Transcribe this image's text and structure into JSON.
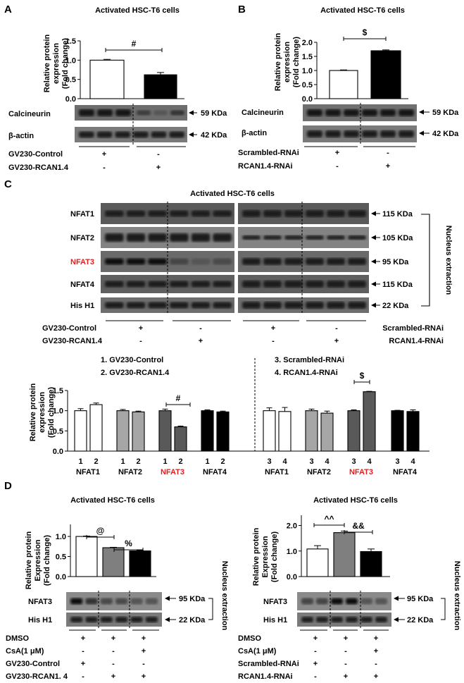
{
  "panel_a": {
    "letter": "A",
    "title": "Activated HSC-T6 cells",
    "ylabel": [
      "Relative protein",
      "expression",
      "(Fold change)"
    ],
    "yticks": [
      "0.0",
      "0.5",
      "1.0",
      "1.5"
    ],
    "sig": "#",
    "bands": [
      "Calcineurin",
      "β-actin"
    ],
    "kda": [
      "59 KDa",
      "42 KDa"
    ],
    "rows": [
      "GV230-Control",
      "GV230-RCAN1.4"
    ],
    "signs": [
      [
        "+",
        "-"
      ],
      [
        "-",
        "+"
      ]
    ]
  },
  "panel_b": {
    "letter": "B",
    "title": "Activated HSC-T6 cells",
    "ylabel": [
      "Relative protein",
      "expression",
      "(Fold change)"
    ],
    "yticks": [
      "0.0",
      "0.5",
      "1.0",
      "1.5",
      "2.0"
    ],
    "sig": "$",
    "bands": [
      "Calcineurin",
      "β-actin"
    ],
    "kda": [
      "59 KDa",
      "42 KDa"
    ],
    "rows": [
      "Scrambled-RNAi",
      "RCAN1.4-RNAi"
    ],
    "signs": [
      [
        "+",
        "-"
      ],
      [
        "-",
        "+"
      ]
    ]
  },
  "panel_c": {
    "letter": "C",
    "title": "Activated HSC-T6 cells",
    "bands": [
      "NFAT1",
      "NFAT2",
      "NFAT3",
      "NFAT4",
      "His H1"
    ],
    "kda": [
      "115 KDa",
      "105 KDa",
      "95 KDa",
      "115 KDa",
      "22 KDa"
    ],
    "side": "Nucleus extraction",
    "rows_left": [
      "GV230-Control",
      "GV230-RCAN1.4"
    ],
    "rows_right": [
      "Scrambled-RNAi",
      "RCAN1.4-RNAi"
    ],
    "signs": [
      [
        "+",
        "-"
      ],
      [
        "-",
        "+"
      ]
    ],
    "legend": [
      "1. GV230-Control",
      "2. GV230-RCAN1.4",
      "3. Scrambled-RNAi",
      "4. RCAN1.4-RNAi"
    ],
    "ylabel": [
      "Relative protein",
      "expression",
      "(Fold change)"
    ],
    "yticks": [
      "0.0",
      "0.5",
      "1.0",
      "1.5"
    ],
    "sig": [
      "#",
      "$"
    ],
    "groups": [
      "NFAT1",
      "NFAT2",
      "NFAT3",
      "NFAT4",
      "NFAT1",
      "NFAT2",
      "NFAT3",
      "NFAT4"
    ],
    "bar_ids": [
      [
        "1",
        "2"
      ],
      [
        "1",
        "2"
      ],
      [
        "1",
        "2"
      ],
      [
        "1",
        "2"
      ],
      [
        "3",
        "4"
      ],
      [
        "3",
        "4"
      ],
      [
        "3",
        "4"
      ],
      [
        "3",
        "4"
      ]
    ]
  },
  "panel_d": {
    "letter": "D",
    "title": "Activated HSC-T6 cells",
    "ylabel": [
      "Relative protein",
      "Expression",
      "(Fold change)"
    ],
    "yticks": [
      "0.0",
      "0.5",
      "1.0"
    ],
    "yticks_right": [
      "0.0",
      "1.0",
      "2.0"
    ],
    "sig_left": [
      "@",
      "%"
    ],
    "sig_right": [
      "^^",
      "&&"
    ],
    "bands": [
      "NFAT3",
      "His H1"
    ],
    "kda": [
      "95 KDa",
      "22 KDa"
    ],
    "side": "Nucleus extraction",
    "rows_left": [
      "DMSO",
      "CsA(1 μM)",
      "GV230-Control",
      "GV230-RCAN1. 4"
    ],
    "rows_right": [
      "DMSO",
      "CsA(1 μM)",
      "Scrambled-RNAi",
      "RCAN1.4-RNAi"
    ],
    "signs": [
      [
        "+",
        "+",
        "+"
      ],
      [
        "-",
        "-",
        "+"
      ],
      [
        "+",
        "-",
        "-"
      ],
      [
        "-",
        "+",
        "+"
      ]
    ]
  },
  "chart_data": [
    {
      "type": "bar",
      "panel": "A",
      "categories": [
        "GV230-Control",
        "GV230-RCAN1.4"
      ],
      "values": [
        1.0,
        0.62
      ],
      "errors": [
        0.02,
        0.06
      ],
      "ylim": [
        0,
        1.5
      ],
      "colors": [
        "#ffffff",
        "#000000"
      ]
    },
    {
      "type": "bar",
      "panel": "B",
      "categories": [
        "Scrambled-RNAi",
        "RCAN1.4-RNAi"
      ],
      "values": [
        1.0,
        1.7
      ],
      "errors": [
        0.02,
        0.03
      ],
      "ylim": [
        0,
        2.0
      ],
      "colors": [
        "#ffffff",
        "#000000"
      ]
    },
    {
      "type": "bar",
      "panel": "C",
      "ylim": [
        0,
        1.5
      ],
      "categories": [
        "NFAT1",
        "NFAT2",
        "NFAT3",
        "NFAT4",
        "NFAT1",
        "NFAT2",
        "NFAT3",
        "NFAT4"
      ],
      "series": [
        {
          "values": [
            1.0,
            1.0,
            1.0,
            1.0,
            1.0,
            1.0,
            1.0,
            1.0
          ],
          "errors": [
            0.05,
            0.03,
            0.04,
            0.02,
            0.07,
            0.04,
            0.02,
            0.01
          ]
        },
        {
          "values": [
            1.15,
            0.97,
            0.6,
            0.97,
            0.98,
            0.94,
            1.47,
            0.98
          ],
          "errors": [
            0.04,
            0.02,
            0.02,
            0.02,
            0.1,
            0.05,
            0.01,
            0.04
          ]
        }
      ],
      "colors": [
        "#ffffff",
        "#a6a6a6",
        "#595959",
        "#000000"
      ]
    },
    {
      "type": "bar",
      "panel": "D-left",
      "categories": [
        "DMSO",
        "DMSO+GV230-RCAN1.4",
        "CsA+GV230-RCAN1.4"
      ],
      "values": [
        1.0,
        0.72,
        0.64
      ],
      "errors": [
        0.01,
        0.01,
        0.01
      ],
      "ylim": [
        0,
        1.3
      ],
      "colors": [
        "#ffffff",
        "#7f7f7f",
        "#000000"
      ]
    },
    {
      "type": "bar",
      "panel": "D-right",
      "categories": [
        "DMSO+Scrambled",
        "DMSO+RCAN1.4-RNAi",
        "CsA+RCAN1.4-RNAi"
      ],
      "values": [
        1.08,
        1.72,
        0.98
      ],
      "errors": [
        0.13,
        0.06,
        0.1
      ],
      "ylim": [
        0,
        2.4
      ],
      "colors": [
        "#ffffff",
        "#7f7f7f",
        "#000000"
      ]
    }
  ]
}
